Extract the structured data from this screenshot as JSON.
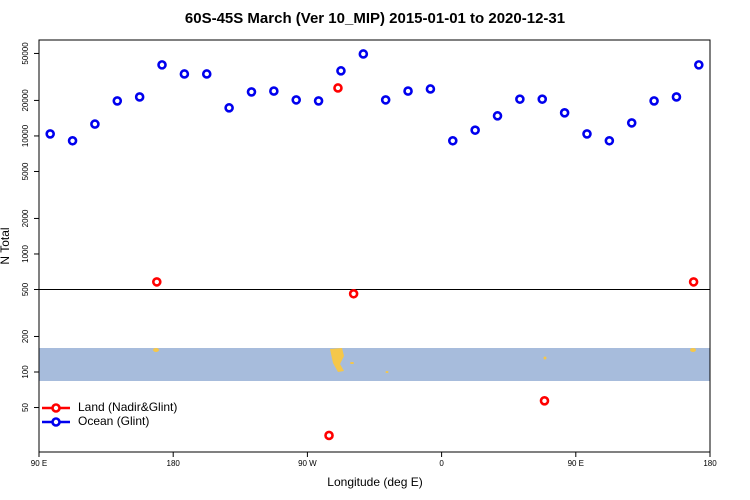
{
  "chart_data": {
    "type": "scatter",
    "title": "60S-45S March (Ver 10_MIP)   2015-01-01 to 2020-12-31",
    "x_label": "Longitude (deg E)",
    "y_label": "N Total",
    "xlim": [
      90,
      540
    ],
    "ylim": [
      21,
      65000
    ],
    "y_log": true,
    "hline": 500,
    "xticks": [
      {
        "value": 90,
        "label": "90 E"
      },
      {
        "value": 180,
        "label": "180"
      },
      {
        "value": 270,
        "label": "90 W"
      },
      {
        "value": 360,
        "label": "0"
      },
      {
        "value": 450,
        "label": "90 E"
      },
      {
        "value": 540,
        "label": "180"
      }
    ],
    "yticks": [
      50,
      100,
      200,
      500,
      1000,
      2000,
      5000,
      10000,
      20000,
      50000
    ],
    "legend": "bottom left",
    "series": [
      {
        "name": "Land (Nadir&Glint)",
        "color": "#ff0000",
        "x": [
          169,
          290.5,
          301,
          284.5,
          429,
          529
        ],
        "values": [
          580,
          25500,
          460,
          29,
          57,
          580
        ]
      },
      {
        "name": "Ocean (Glint)",
        "color": "#0000ee",
        "x": [
          97.5,
          112.5,
          127.5,
          142.5,
          157.5,
          172.5,
          187.5,
          202.5,
          217.5,
          232.5,
          247.5,
          262.5,
          277.5,
          292.5,
          307.5,
          322.5,
          337.5,
          352.5,
          367.5,
          382.5,
          397.5,
          412.5,
          427.5,
          442.5,
          457.5,
          472.5,
          487.5,
          502.5,
          517.5,
          532.5
        ],
        "values": [
          10400,
          9100,
          12600,
          19800,
          21400,
          40000,
          33500,
          33500,
          17300,
          23600,
          24000,
          20200,
          19800,
          35600,
          49500,
          20200,
          24000,
          25000,
          9100,
          11200,
          14800,
          20500,
          20500,
          15700,
          10400,
          9100,
          12900,
          19800,
          21400,
          40000
        ]
      }
    ]
  }
}
